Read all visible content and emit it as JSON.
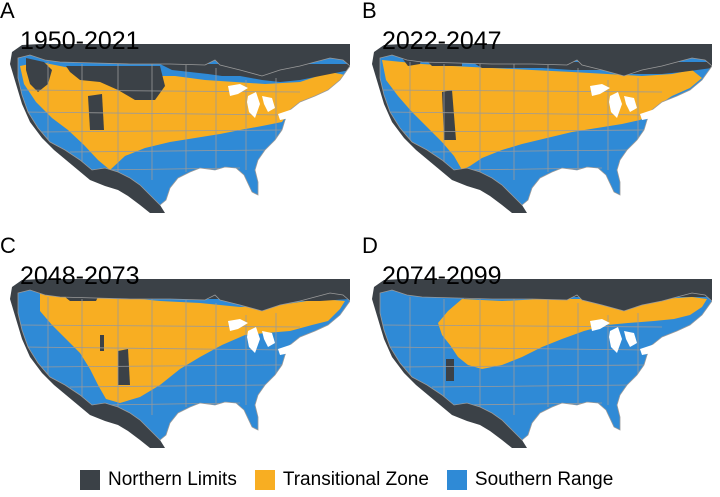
{
  "colors": {
    "northern": "#3b4147",
    "transitional": "#f8ae22",
    "southern": "#2f8ad6",
    "water": "#ffffff",
    "border": "#9a9a9a"
  },
  "panels": [
    {
      "letter": "A",
      "years": "1950-2021"
    },
    {
      "letter": "B",
      "years": "2022-2047"
    },
    {
      "letter": "C",
      "years": "2048-2073"
    },
    {
      "letter": "D",
      "years": "2074-2099"
    }
  ],
  "legend": [
    {
      "label": "Northern Limits",
      "color": "#3b4147"
    },
    {
      "label": "Transitional Zone",
      "color": "#f8ae22"
    },
    {
      "label": "Southern Range",
      "color": "#2f8ad6"
    }
  ]
}
